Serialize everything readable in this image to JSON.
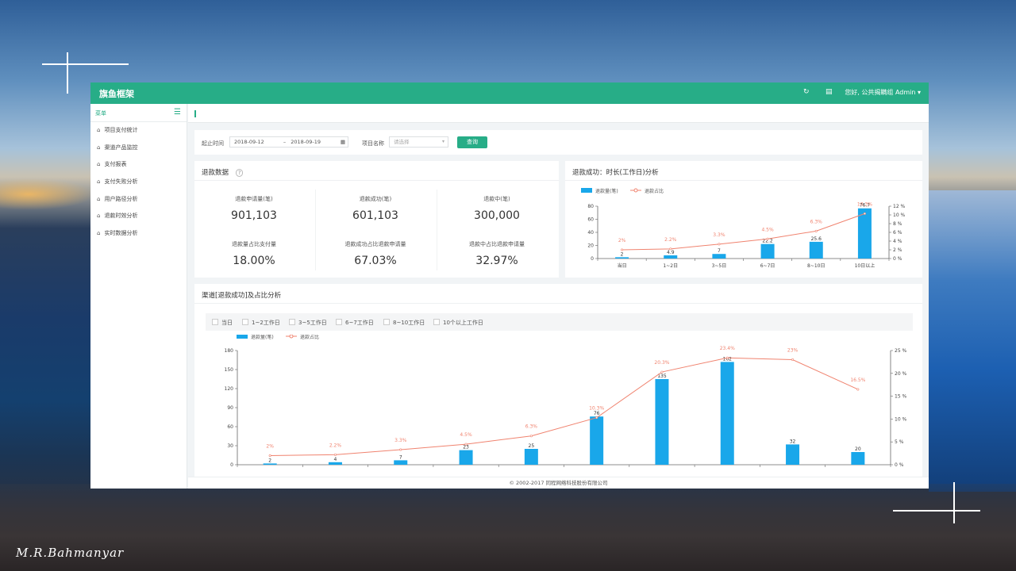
{
  "watermark": "M.R.Bahmanyar",
  "app": {
    "title": "旗鱼框架",
    "user_greeting": "您好, 公共揭瞒组 Admin",
    "user_caret": "▾",
    "refresh_icon": "refresh-icon",
    "map_icon": "map-icon"
  },
  "sidebar": {
    "header": "菜单",
    "items": [
      {
        "label": "项目支付统计",
        "icon": "home-icon"
      },
      {
        "label": "渠道产品监控",
        "icon": "home-icon"
      },
      {
        "label": "支付报表",
        "icon": "home-icon"
      },
      {
        "label": "支付失败分析",
        "icon": "home-icon"
      },
      {
        "label": "用户路径分析",
        "icon": "home-icon"
      },
      {
        "label": "退款时效分析",
        "icon": "home-icon"
      },
      {
        "label": "实时数据分析",
        "icon": "home-icon"
      }
    ]
  },
  "filter": {
    "start_label": "起止时间",
    "start_date": "2018-09-12",
    "date_separator": "–",
    "end_date": "2018-09-19",
    "project_label": "项目名称",
    "project_placeholder": "请选择",
    "query_button": "查询"
  },
  "refund_data": {
    "title": "退款数据",
    "help_icon": "question-icon",
    "stats": [
      {
        "label": "退款申请量(笔)",
        "value": "901,103"
      },
      {
        "label": "退款成功(笔)",
        "value": "601,103"
      },
      {
        "label": "退款中(笔)",
        "value": "300,000"
      },
      {
        "label": "退款量占比支付量",
        "value": "18.00%"
      },
      {
        "label": "退款成功占比退款申请量",
        "value": "67.03%"
      },
      {
        "label": "退款中占比退款申请量",
        "value": "32.97%"
      }
    ]
  },
  "channel": {
    "title": "渠道[退款成功]及占比分析",
    "checkboxes": [
      "当日",
      "1~2工作日",
      "3~5工作日",
      "6~7工作日",
      "8~10工作日",
      "10个以上工作日"
    ]
  },
  "footer": "© 2002-2017 同程网络科技股份有限公司",
  "colors": {
    "brand": "#27ad87",
    "bar": "#19a7ea",
    "line": "#f0836f"
  },
  "chart_data": [
    {
      "type": "bar",
      "title": "退款成功：时长(工作日)分析",
      "legend": [
        "退款量(笔)",
        "退款占比"
      ],
      "legend_placement": "top-left",
      "categories": [
        "当日",
        "1~2日",
        "3~5日",
        "6~7日",
        "8~10日",
        "10日以上"
      ],
      "series": [
        {
          "name": "退款量(笔)",
          "type": "bar",
          "axis": "left",
          "values": [
            2,
            4.9,
            7,
            22.2,
            25.6,
            76.7
          ],
          "labels": [
            "2",
            "4.9",
            "7",
            "22.2",
            "25.6",
            "76.7"
          ]
        },
        {
          "name": "退款占比",
          "type": "line",
          "axis": "right",
          "values": [
            2,
            2.2,
            3.3,
            4.5,
            6.3,
            10.3
          ],
          "labels": [
            "2%",
            "2.2%",
            "3.3%",
            "4.5%",
            "6.3%",
            "10.3%"
          ]
        }
      ],
      "ylim": [
        0,
        80
      ],
      "yticks": [
        "0",
        "20",
        "40",
        "60",
        "80"
      ],
      "y2lim": [
        0,
        12
      ],
      "y2ticks": [
        "0 %",
        "2 %",
        "4 %",
        "6 %",
        "8 %",
        "10 %",
        "12 %"
      ],
      "grid": false
    },
    {
      "type": "bar",
      "legend": [
        "退款量(笔)",
        "退款占比"
      ],
      "legend_placement": "top-left",
      "categories": [
        "",
        "",
        "",
        "",
        "",
        "",
        "",
        "",
        "",
        ""
      ],
      "series": [
        {
          "name": "退款量(笔)",
          "type": "bar",
          "axis": "left",
          "values": [
            2,
            4,
            7,
            23,
            25,
            76,
            135,
            162,
            32,
            20
          ],
          "labels": [
            "2",
            "4",
            "7",
            "23",
            "25",
            "76",
            "135",
            "162",
            "32",
            "20"
          ]
        },
        {
          "name": "退款占比",
          "type": "line",
          "axis": "right",
          "values": [
            2,
            2.2,
            3.3,
            4.5,
            6.3,
            10.3,
            20.3,
            23.4,
            23,
            16.5
          ],
          "labels": [
            "2%",
            "2.2%",
            "3.3%",
            "4.5%",
            "6.3%",
            "10.3%",
            "20.3%",
            "23.4%",
            "23%",
            "16.5%"
          ]
        }
      ],
      "ylim": [
        0,
        180
      ],
      "yticks": [
        "0",
        "30",
        "60",
        "90",
        "120",
        "150",
        "180"
      ],
      "y2lim": [
        0,
        25
      ],
      "y2ticks": [
        "0 %",
        "5 %",
        "10 %",
        "15 %",
        "20 %",
        "25 %"
      ],
      "grid": false
    }
  ]
}
